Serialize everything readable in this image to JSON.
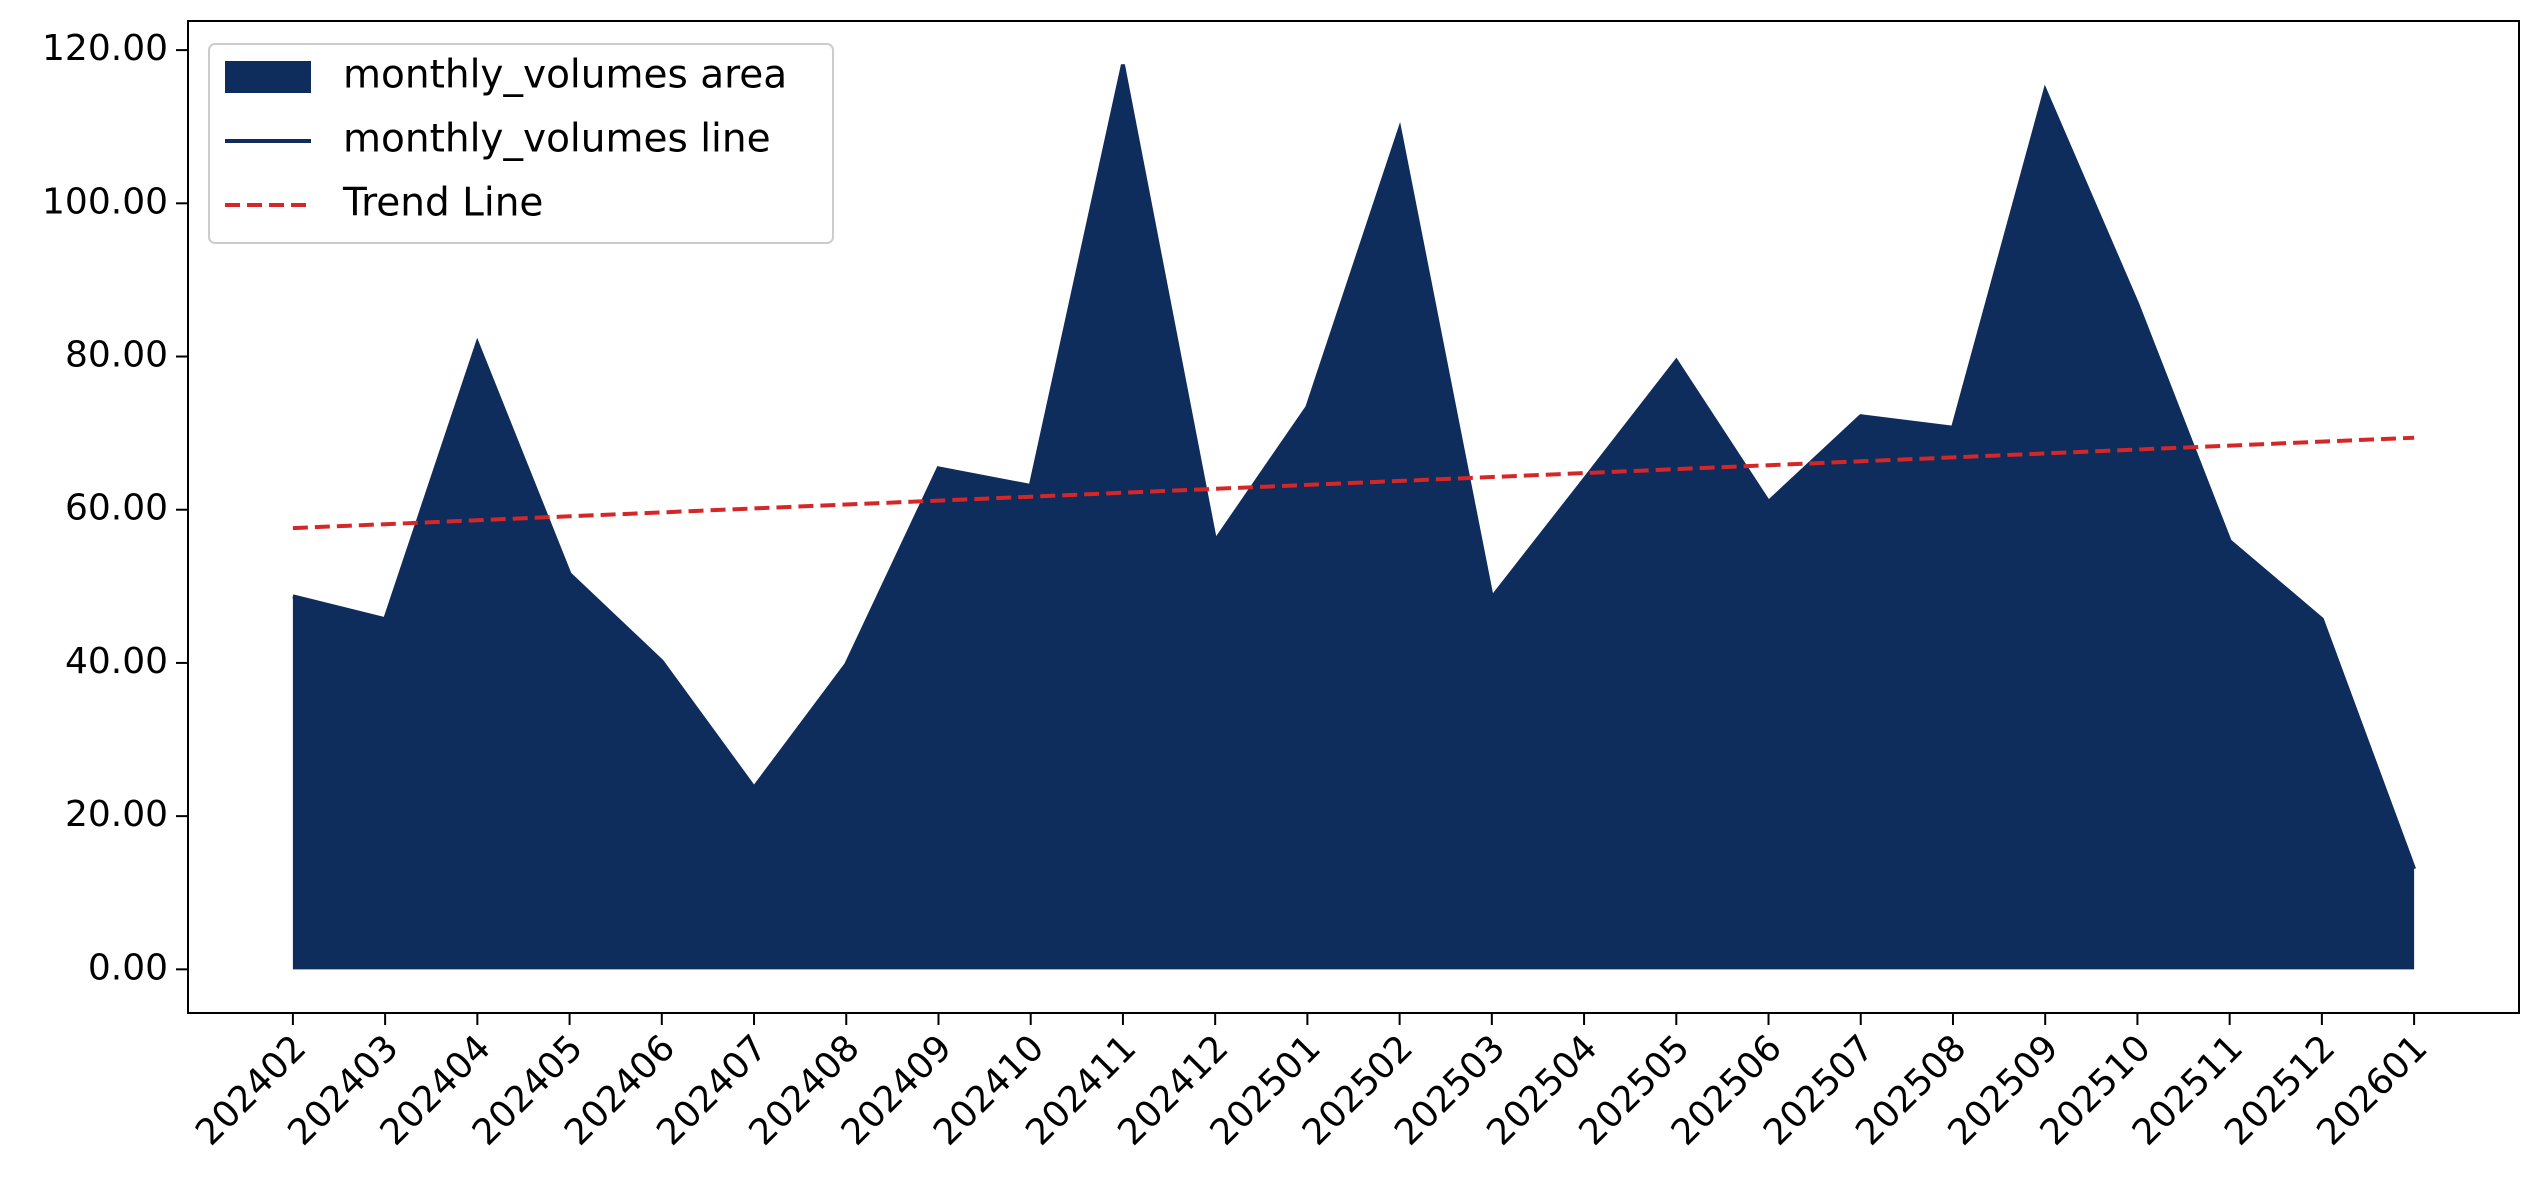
{
  "chart_data": {
    "type": "area",
    "categories": [
      "202402",
      "202403",
      "202404",
      "202405",
      "202406",
      "202407",
      "202408",
      "202409",
      "202410",
      "202411",
      "202412",
      "202501",
      "202502",
      "202503",
      "202504",
      "202505",
      "202506",
      "202507",
      "202508",
      "202509",
      "202510",
      "202511",
      "202512",
      "202601"
    ],
    "series": [
      {
        "name": "monthly_volumes area",
        "color": "#0e2c5c",
        "kind": "area",
        "values": [
          48.7,
          45.7,
          81.7,
          51.6,
          40.2,
          23.7,
          39.8,
          65.4,
          63.1,
          118.1,
          55.9,
          73.4,
          109.6,
          48.5,
          63.9,
          79.4,
          61.0,
          72.2,
          70.7,
          114.7,
          86.8,
          55.9,
          45.7,
          13.1
        ]
      },
      {
        "name": "monthly_volumes line",
        "color": "#0e2c5c",
        "kind": "line",
        "values": [
          48.7,
          45.7,
          81.7,
          51.6,
          40.2,
          23.7,
          39.8,
          65.4,
          63.1,
          118.1,
          55.9,
          73.4,
          109.6,
          48.5,
          63.9,
          79.4,
          61.0,
          72.2,
          70.7,
          114.7,
          86.8,
          55.9,
          45.7,
          13.1
        ]
      },
      {
        "name": "Trend Line",
        "color": "#d62728",
        "kind": "dashed",
        "values": [
          57.6,
          58.11,
          58.63,
          59.14,
          59.65,
          60.17,
          60.68,
          61.19,
          61.7,
          62.22,
          62.73,
          63.24,
          63.76,
          64.27,
          64.78,
          65.3,
          65.81,
          66.32,
          66.83,
          67.35,
          67.86,
          68.37,
          68.89,
          69.4
        ]
      }
    ],
    "ylim": [
      -5.7,
      123.8
    ],
    "yticks": [
      {
        "value": 0,
        "label": "0.00"
      },
      {
        "value": 20,
        "label": "20.00"
      },
      {
        "value": 40,
        "label": "40.00"
      },
      {
        "value": 60,
        "label": "60.00"
      },
      {
        "value": 80,
        "label": "80.00"
      },
      {
        "value": 100,
        "label": "100.00"
      },
      {
        "value": 120,
        "label": "120.00"
      }
    ],
    "legend": "upper left"
  }
}
